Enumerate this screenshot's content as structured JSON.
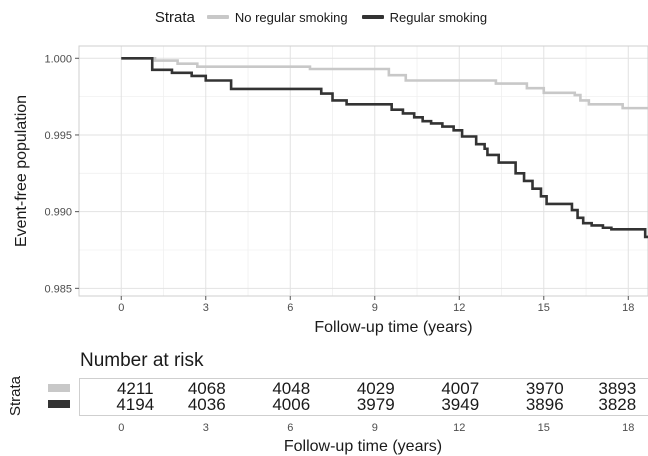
{
  "legend": {
    "title": "Strata",
    "items": [
      {
        "label": "No regular smoking",
        "color": "#c8c8c8"
      },
      {
        "label": "Regular smoking",
        "color": "#333333"
      }
    ]
  },
  "chart_data": {
    "type": "line",
    "subtype": "kaplan-meier step",
    "xlabel": "Follow-up time (years)",
    "ylabel": "Event-free population",
    "xlim": [
      -1.5,
      18.7
    ],
    "ylim": [
      0.9845,
      1.0008
    ],
    "xticks": [
      0,
      3,
      6,
      9,
      12,
      15,
      18
    ],
    "yticks": [
      0.985,
      0.99,
      0.995,
      1.0
    ],
    "ytick_labels": [
      "0.985",
      "0.990",
      "0.995",
      "1.000"
    ],
    "grid": true,
    "legend_position": "top",
    "series": [
      {
        "name": "No regular smoking",
        "color": "#c8c8c8",
        "x": [
          0,
          1.2,
          2.0,
          2.7,
          6.7,
          9.5,
          10.1,
          13.3,
          14.4,
          15.0,
          16.1,
          16.3,
          16.6,
          17.8,
          18.7
        ],
        "y": [
          1.0,
          0.99985,
          0.99965,
          0.99945,
          0.9993,
          0.9989,
          0.99855,
          0.99835,
          0.99805,
          0.99775,
          0.9976,
          0.99725,
          0.997,
          0.99675,
          0.99675
        ]
      },
      {
        "name": "Regular smoking",
        "color": "#333333",
        "x": [
          0,
          1.1,
          1.8,
          2.5,
          3.0,
          3.9,
          7.1,
          7.5,
          8.0,
          9.6,
          10.0,
          10.4,
          10.7,
          11.0,
          11.4,
          11.8,
          12.1,
          12.6,
          12.9,
          13.0,
          13.4,
          14.0,
          14.3,
          14.6,
          14.9,
          15.1,
          16.0,
          16.2,
          16.4,
          16.7,
          17.1,
          17.4,
          18.6,
          18.7
        ],
        "y": [
          1.0,
          0.99925,
          0.99905,
          0.99885,
          0.99855,
          0.998,
          0.9977,
          0.99725,
          0.997,
          0.99665,
          0.9964,
          0.99615,
          0.9959,
          0.99575,
          0.99555,
          0.9953,
          0.9949,
          0.9944,
          0.9941,
          0.9937,
          0.9932,
          0.9925,
          0.992,
          0.9915,
          0.991,
          0.9905,
          0.9901,
          0.9896,
          0.98925,
          0.9891,
          0.98895,
          0.98885,
          0.98835,
          0.98835
        ]
      }
    ]
  },
  "risk_table": {
    "title": "Number at risk",
    "strata_label": "Strata",
    "xlabel": "Follow-up time (years)",
    "times": [
      0,
      3,
      6,
      9,
      12,
      15,
      18
    ],
    "rows": [
      {
        "color": "#c8c8c8",
        "values": [
          "4211",
          "4068",
          "4048",
          "4029",
          "4007",
          "3970",
          "3893"
        ]
      },
      {
        "color": "#333333",
        "values": [
          "4194",
          "4036",
          "4006",
          "3979",
          "3949",
          "3896",
          "3828"
        ]
      }
    ]
  }
}
